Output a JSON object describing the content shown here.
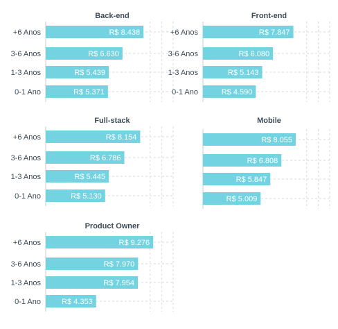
{
  "chart_data": [
    {
      "type": "bar",
      "title": "Back-end",
      "categories": [
        "+6 Anos",
        "3-6 Anos",
        "1-3 Anos",
        "0-1 Ano"
      ],
      "values": [
        8438,
        6630,
        5439,
        5371
      ],
      "value_labels": [
        "R$ 8.438",
        "R$ 6.630",
        "R$ 5.439",
        "R$ 5.371"
      ],
      "orientation": "horizontal",
      "grid": true,
      "xlim": [
        0,
        11000
      ]
    },
    {
      "type": "bar",
      "title": "Front-end",
      "categories": [
        "+6 Anos",
        "3-6 Anos",
        "1-3 Anos",
        "0-1 Ano"
      ],
      "values": [
        7847,
        6080,
        5143,
        4590
      ],
      "value_labels": [
        "R$ 7.847",
        "R$ 6.080",
        "R$ 5.143",
        "R$ 4.590"
      ],
      "orientation": "horizontal",
      "grid": true,
      "xlim": [
        0,
        11000
      ]
    },
    {
      "type": "bar",
      "title": "Full-stack",
      "categories": [
        "+6 Anos",
        "3-6 Anos",
        "1-3 Anos",
        "0-1 Ano"
      ],
      "values": [
        8154,
        6786,
        5445,
        5130
      ],
      "value_labels": [
        "R$ 8.154",
        "R$ 6.786",
        "R$ 5.445",
        "R$ 5.130"
      ],
      "orientation": "horizontal",
      "grid": true,
      "xlim": [
        0,
        11000
      ]
    },
    {
      "type": "bar",
      "title": "Mobile",
      "categories": [
        "",
        "",
        "",
        ""
      ],
      "values": [
        8055,
        6808,
        5847,
        5009
      ],
      "value_labels": [
        "R$ 8.055",
        "R$ 6.808",
        "R$ 5.847",
        "R$ 5.009"
      ],
      "orientation": "horizontal",
      "grid": true,
      "xlim": [
        0,
        11000
      ]
    },
    {
      "type": "bar",
      "title": "Product Owner",
      "categories": [
        "+6 Anos",
        "3-6 Anos",
        "1-3 Anos",
        "0-1 Ano"
      ],
      "values": [
        9276,
        7970,
        7954,
        4353
      ],
      "value_labels": [
        "R$ 9.276",
        "R$ 7.970",
        "R$ 7.954",
        "R$ 4.353"
      ],
      "orientation": "horizontal",
      "grid": true,
      "xlim": [
        0,
        11000
      ]
    }
  ],
  "colors": {
    "bar": "#74d3e1",
    "bar_label": "#ffffff",
    "title": "#3d4b57",
    "category": "#3d4b57",
    "grid": "#d6dbe0",
    "axis": "#c8ced4"
  }
}
